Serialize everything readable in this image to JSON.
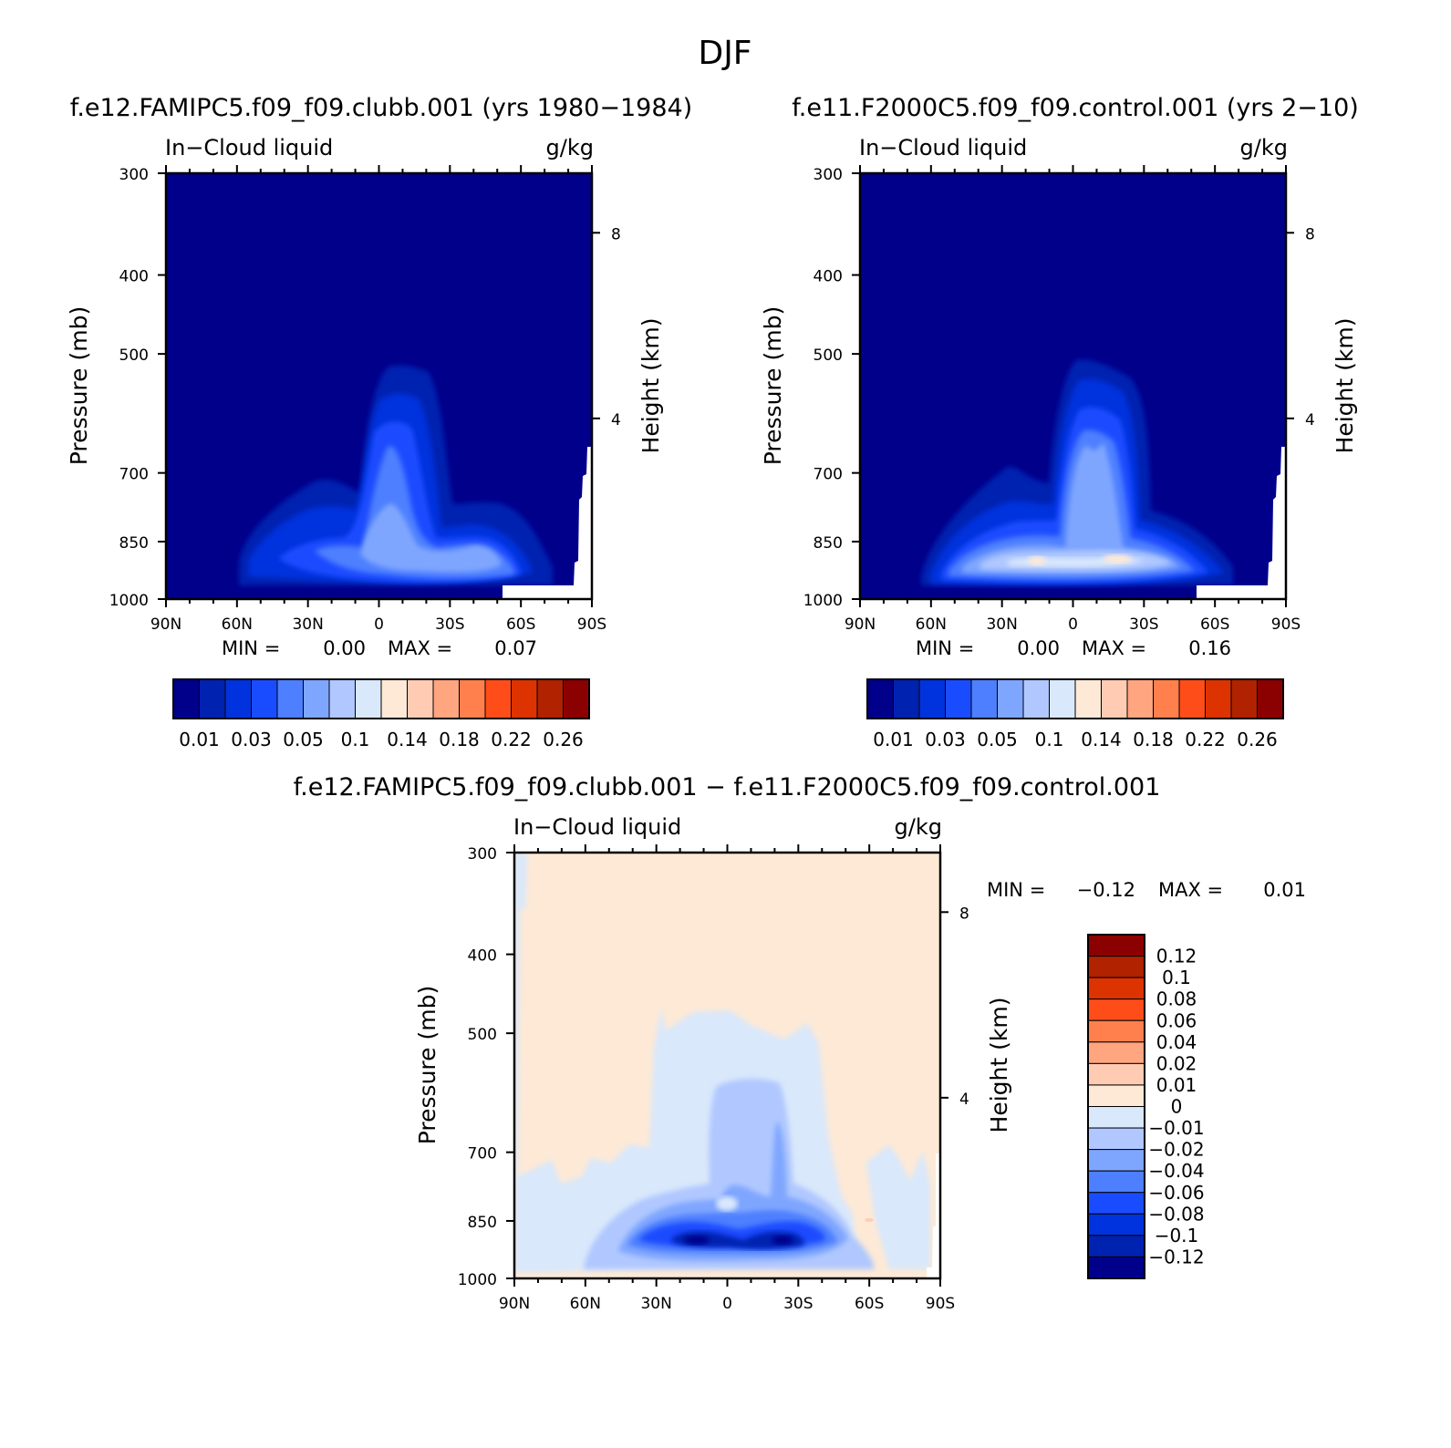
{
  "title": "DJF",
  "colors": {
    "palette16": [
      "#00008b",
      "#0022b0",
      "#0033dd",
      "#1a4cff",
      "#4d7fff",
      "#7fa6ff",
      "#b0c8ff",
      "#d9e8fb",
      "#fde9d6",
      "#ffccb3",
      "#ffa580",
      "#ff7f4d",
      "#ff4d1a",
      "#dd3300",
      "#b02200",
      "#8b0000"
    ],
    "diff_palette": [
      "#00008b",
      "#0022b0",
      "#0033dd",
      "#1a4cff",
      "#4d7fff",
      "#7fa6ff",
      "#b0c8ff",
      "#d9e8fb",
      "#fde9d6",
      "#ffccb3",
      "#ffa580",
      "#ff7f4d",
      "#ff4d1a",
      "#dd3300",
      "#b02200",
      "#8b0000"
    ]
  },
  "chart_data": [
    {
      "type": "heatmap",
      "panel": "top-left",
      "title": "f.e12.FAMIPC5.f09_f09.clubb.001 (yrs 1980−1984)",
      "left_header": "In−Cloud liquid",
      "right_header": "g/kg",
      "ylabel": "Pressure (mb)",
      "ylabel2": "Height (km)",
      "ylim": [
        1000,
        300
      ],
      "yticks": [
        "300",
        "400",
        "500",
        "700",
        "850",
        "1000"
      ],
      "ytick_values": [
        300,
        400,
        500,
        700,
        850,
        1000
      ],
      "y2ticks": [
        "8",
        "4"
      ],
      "y2tick_pressures": [
        355,
        600
      ],
      "xlim": [
        90,
        -90
      ],
      "xticks": [
        "90N",
        "60N",
        "30N",
        "0",
        "30S",
        "60S",
        "90S"
      ],
      "xtick_values": [
        90,
        60,
        30,
        0,
        -30,
        -60,
        -90
      ],
      "min_label": "MIN =",
      "min_value": "0.00",
      "max_label": "MAX =",
      "max_value": "0.07",
      "colorbar_labels": [
        "0.01",
        "0.03",
        "0.05",
        "0.1",
        "0.14",
        "0.18",
        "0.22",
        "0.26"
      ],
      "colorbar_levels": [
        0.01,
        0.02,
        0.03,
        0.04,
        0.05,
        0.06,
        0.08,
        0.1,
        0.12,
        0.14,
        0.16,
        0.18,
        0.2,
        0.22,
        0.24,
        0.26
      ]
    },
    {
      "type": "heatmap",
      "panel": "top-right",
      "title": "f.e11.F2000C5.f09_f09.control.001 (yrs 2−10)",
      "left_header": "In−Cloud liquid",
      "right_header": "g/kg",
      "ylabel": "Pressure (mb)",
      "ylabel2": "Height (km)",
      "ylim": [
        1000,
        300
      ],
      "yticks": [
        "300",
        "400",
        "500",
        "700",
        "850",
        "1000"
      ],
      "ytick_values": [
        300,
        400,
        500,
        700,
        850,
        1000
      ],
      "y2ticks": [
        "8",
        "4"
      ],
      "y2tick_pressures": [
        355,
        600
      ],
      "xlim": [
        90,
        -90
      ],
      "xticks": [
        "90N",
        "60N",
        "30N",
        "0",
        "30S",
        "60S",
        "90S"
      ],
      "xtick_values": [
        90,
        60,
        30,
        0,
        -30,
        -60,
        -90
      ],
      "min_label": "MIN =",
      "min_value": "0.00",
      "max_label": "MAX =",
      "max_value": "0.16",
      "colorbar_labels": [
        "0.01",
        "0.03",
        "0.05",
        "0.1",
        "0.14",
        "0.18",
        "0.22",
        "0.26"
      ],
      "colorbar_levels": [
        0.01,
        0.02,
        0.03,
        0.04,
        0.05,
        0.06,
        0.08,
        0.1,
        0.12,
        0.14,
        0.16,
        0.18,
        0.2,
        0.22,
        0.24,
        0.26
      ]
    },
    {
      "type": "heatmap",
      "panel": "bottom",
      "title": "f.e12.FAMIPC5.f09_f09.clubb.001 − f.e11.F2000C5.f09_f09.control.001",
      "left_header": "In−Cloud liquid",
      "right_header": "g/kg",
      "ylabel": "Pressure (mb)",
      "ylabel2": "Height (km)",
      "ylim": [
        1000,
        300
      ],
      "yticks": [
        "300",
        "400",
        "500",
        "700",
        "850",
        "1000"
      ],
      "ytick_values": [
        300,
        400,
        500,
        700,
        850,
        1000
      ],
      "y2ticks": [
        "8",
        "4"
      ],
      "y2tick_pressures": [
        355,
        600
      ],
      "xlim": [
        90,
        -90
      ],
      "xticks": [
        "90N",
        "60N",
        "30N",
        "0",
        "30S",
        "60S",
        "90S"
      ],
      "xtick_values": [
        90,
        60,
        30,
        0,
        -30,
        -60,
        -90
      ],
      "min_label": "MIN =",
      "min_value": "−0.12",
      "max_label": "MAX =",
      "max_value": "0.01",
      "colorbar_labels": [
        "0.12",
        "0.1",
        "0.08",
        "0.06",
        "0.04",
        "0.02",
        "0.01",
        "0",
        "−0.01",
        "−0.02",
        "−0.04",
        "−0.06",
        "−0.08",
        "−0.1",
        "−0.12"
      ],
      "colorbar_levels": [
        0.12,
        0.1,
        0.08,
        0.06,
        0.04,
        0.02,
        0.01,
        0,
        -0.01,
        -0.02,
        -0.04,
        -0.06,
        -0.08,
        -0.1,
        -0.12
      ]
    }
  ]
}
